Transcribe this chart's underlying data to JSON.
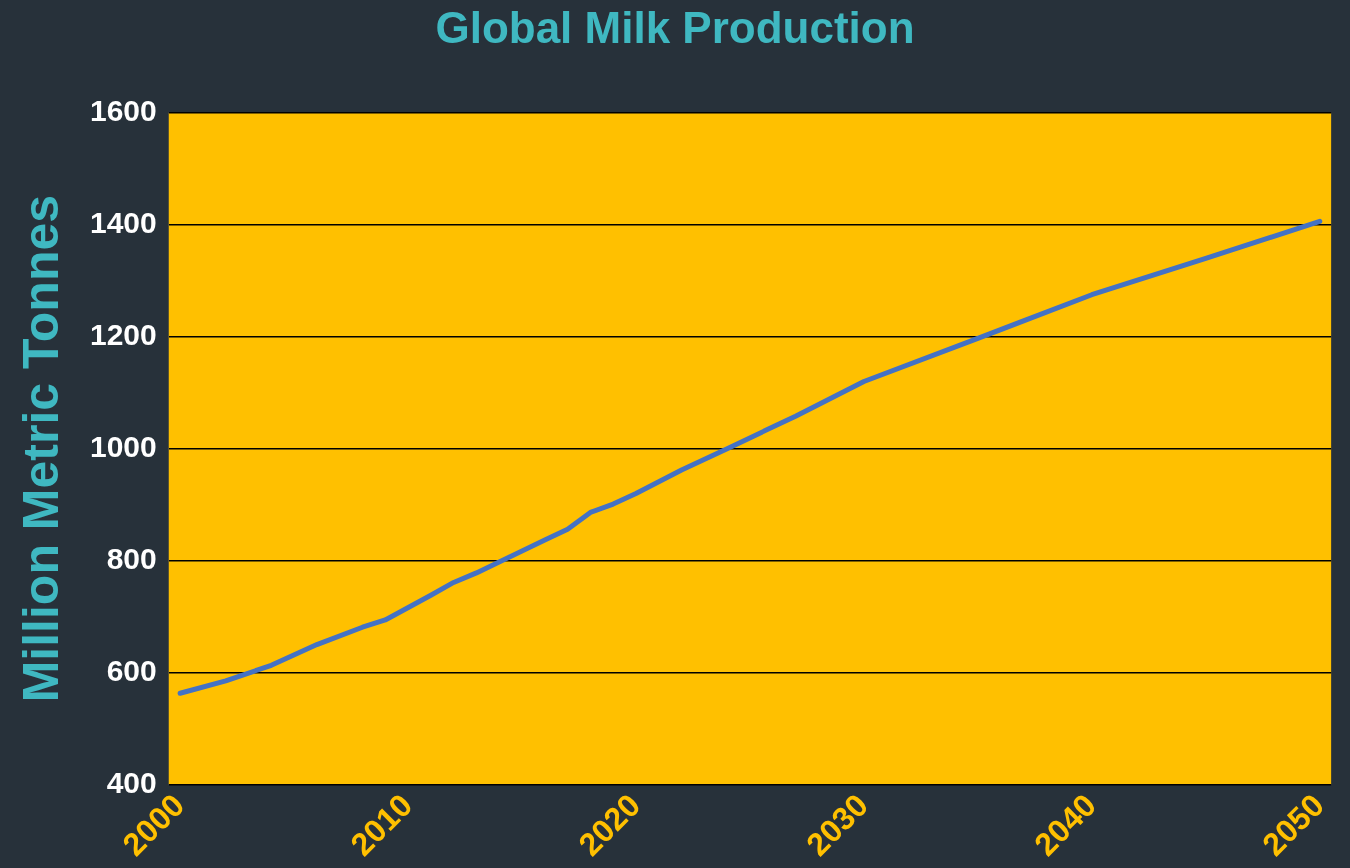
{
  "chart_data": {
    "type": "line",
    "title": "Global Milk Production",
    "ylabel": "Million Metric Tonnes",
    "x": [
      2000,
      2002,
      2004,
      2006,
      2008,
      2009,
      2011,
      2012,
      2013,
      2016,
      2017,
      2018,
      2019,
      2020,
      2022,
      2024,
      2027,
      2030,
      2035,
      2040,
      2045,
      2050
    ],
    "series": [
      {
        "color": "#4472c4",
        "values": [
          563,
          585,
          613,
          650,
          681,
          694,
          738,
          761,
          778,
          837,
          856,
          886,
          901,
          920,
          962,
          1000,
          1058,
          1120,
          1197,
          1275,
          1340,
          1406
        ]
      }
    ],
    "xlim": [
      1999.5,
      2050.5
    ],
    "xticks": [
      2000,
      2010,
      2020,
      2030,
      2040,
      2050
    ],
    "ylim": [
      400,
      1600
    ],
    "yticks": [
      400,
      600,
      800,
      1000,
      1200,
      1400,
      1600
    ],
    "grid": "y",
    "legend": false,
    "marker": "none",
    "line_style": "solid"
  }
}
